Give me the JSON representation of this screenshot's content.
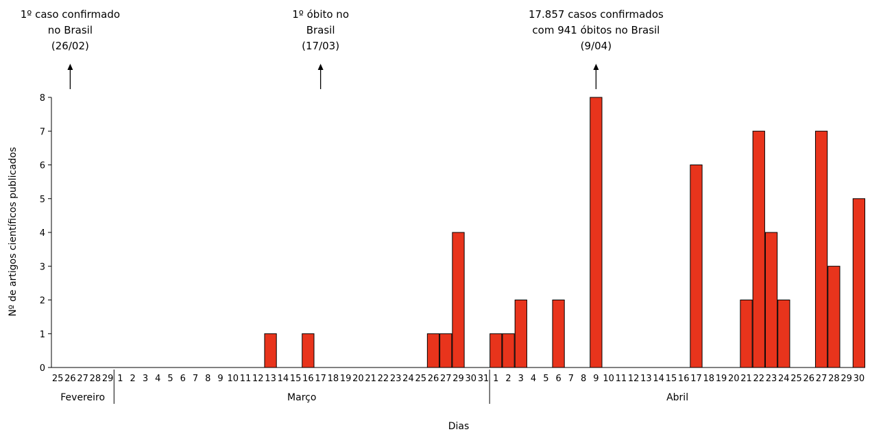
{
  "chart_data": {
    "type": "bar",
    "title": "",
    "xlabel": "Dias",
    "ylabel": "Nº de artigos científicos publicados",
    "ylim": [
      0,
      8
    ],
    "yticks": [
      "0",
      "1",
      "2",
      "3",
      "4",
      "5",
      "6",
      "7",
      "8"
    ],
    "bar_color": "#e8341c",
    "grid": false,
    "legend": "none",
    "months": [
      {
        "name": "Fevereiro",
        "days": [
          "25",
          "26",
          "27",
          "28",
          "29"
        ]
      },
      {
        "name": "Março",
        "days": [
          "1",
          "2",
          "3",
          "4",
          "5",
          "6",
          "7",
          "8",
          "9",
          "10",
          "11",
          "12",
          "13",
          "14",
          "15",
          "16",
          "17",
          "18",
          "19",
          "20",
          "21",
          "22",
          "23",
          "24",
          "25",
          "26",
          "27",
          "29",
          "30",
          "31"
        ]
      },
      {
        "name": "Abril",
        "days": [
          "1",
          "2",
          "3",
          "4",
          "5",
          "6",
          "7",
          "8",
          "9",
          "10",
          "11",
          "12",
          "13",
          "14",
          "15",
          "16",
          "17",
          "18",
          "19",
          "20",
          "21",
          "22",
          "23",
          "24",
          "25",
          "26",
          "27",
          "28",
          "29",
          "30"
        ]
      }
    ],
    "series": [
      {
        "values": [
          0,
          0,
          0,
          0,
          0,
          0,
          0,
          0,
          0,
          0,
          0,
          0,
          0,
          0,
          0,
          0,
          0,
          1,
          0,
          0,
          1,
          0,
          0,
          0,
          0,
          0,
          0,
          0,
          0,
          0,
          1,
          1,
          4,
          0,
          0,
          1,
          1,
          2,
          0,
          0,
          2,
          0,
          0,
          8,
          0,
          0,
          0,
          0,
          0,
          0,
          0,
          6,
          0,
          0,
          0,
          2,
          7,
          4,
          2,
          0,
          0,
          7,
          3,
          0,
          5
        ]
      }
    ],
    "annotations": [
      {
        "month": 0,
        "day": "26",
        "lines": [
          "1º caso confirmado",
          "no Brasil",
          "(26/02)"
        ]
      },
      {
        "month": 1,
        "day": "17",
        "lines": [
          "1º óbito no",
          "Brasil",
          "(17/03)"
        ]
      },
      {
        "month": 2,
        "day": "9",
        "lines": [
          "17.857 casos confirmados",
          "com 941 óbitos no Brasil",
          "(9/04)"
        ]
      }
    ]
  }
}
